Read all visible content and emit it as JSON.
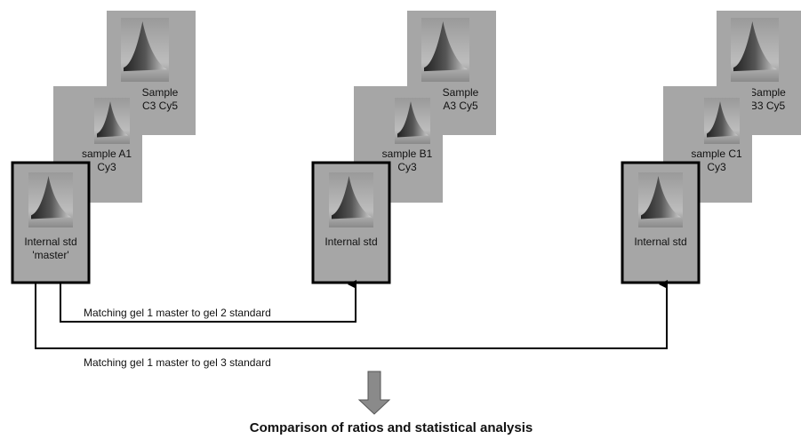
{
  "groups": [
    {
      "back": [
        "Sample",
        "C3   Cy5"
      ],
      "middle": [
        "sample A1",
        "Cy3"
      ],
      "front": [
        "Internal std",
        "'master'"
      ]
    },
    {
      "back": [
        "Sample",
        "A3   Cy5"
      ],
      "middle": [
        "sample B1",
        "Cy3"
      ],
      "front": [
        "Internal std"
      ]
    },
    {
      "back": [
        "Sample",
        "B3 Cy5"
      ],
      "middle": [
        "sample C1",
        "Cy3"
      ],
      "front": [
        "Internal std"
      ]
    }
  ],
  "links": [
    {
      "label": "Matching gel 1 master to gel 2 standard"
    },
    {
      "label": "Matching gel 1 master to gel 3 standard"
    }
  ],
  "conclusion": "Comparison of ratios and statistical analysis"
}
